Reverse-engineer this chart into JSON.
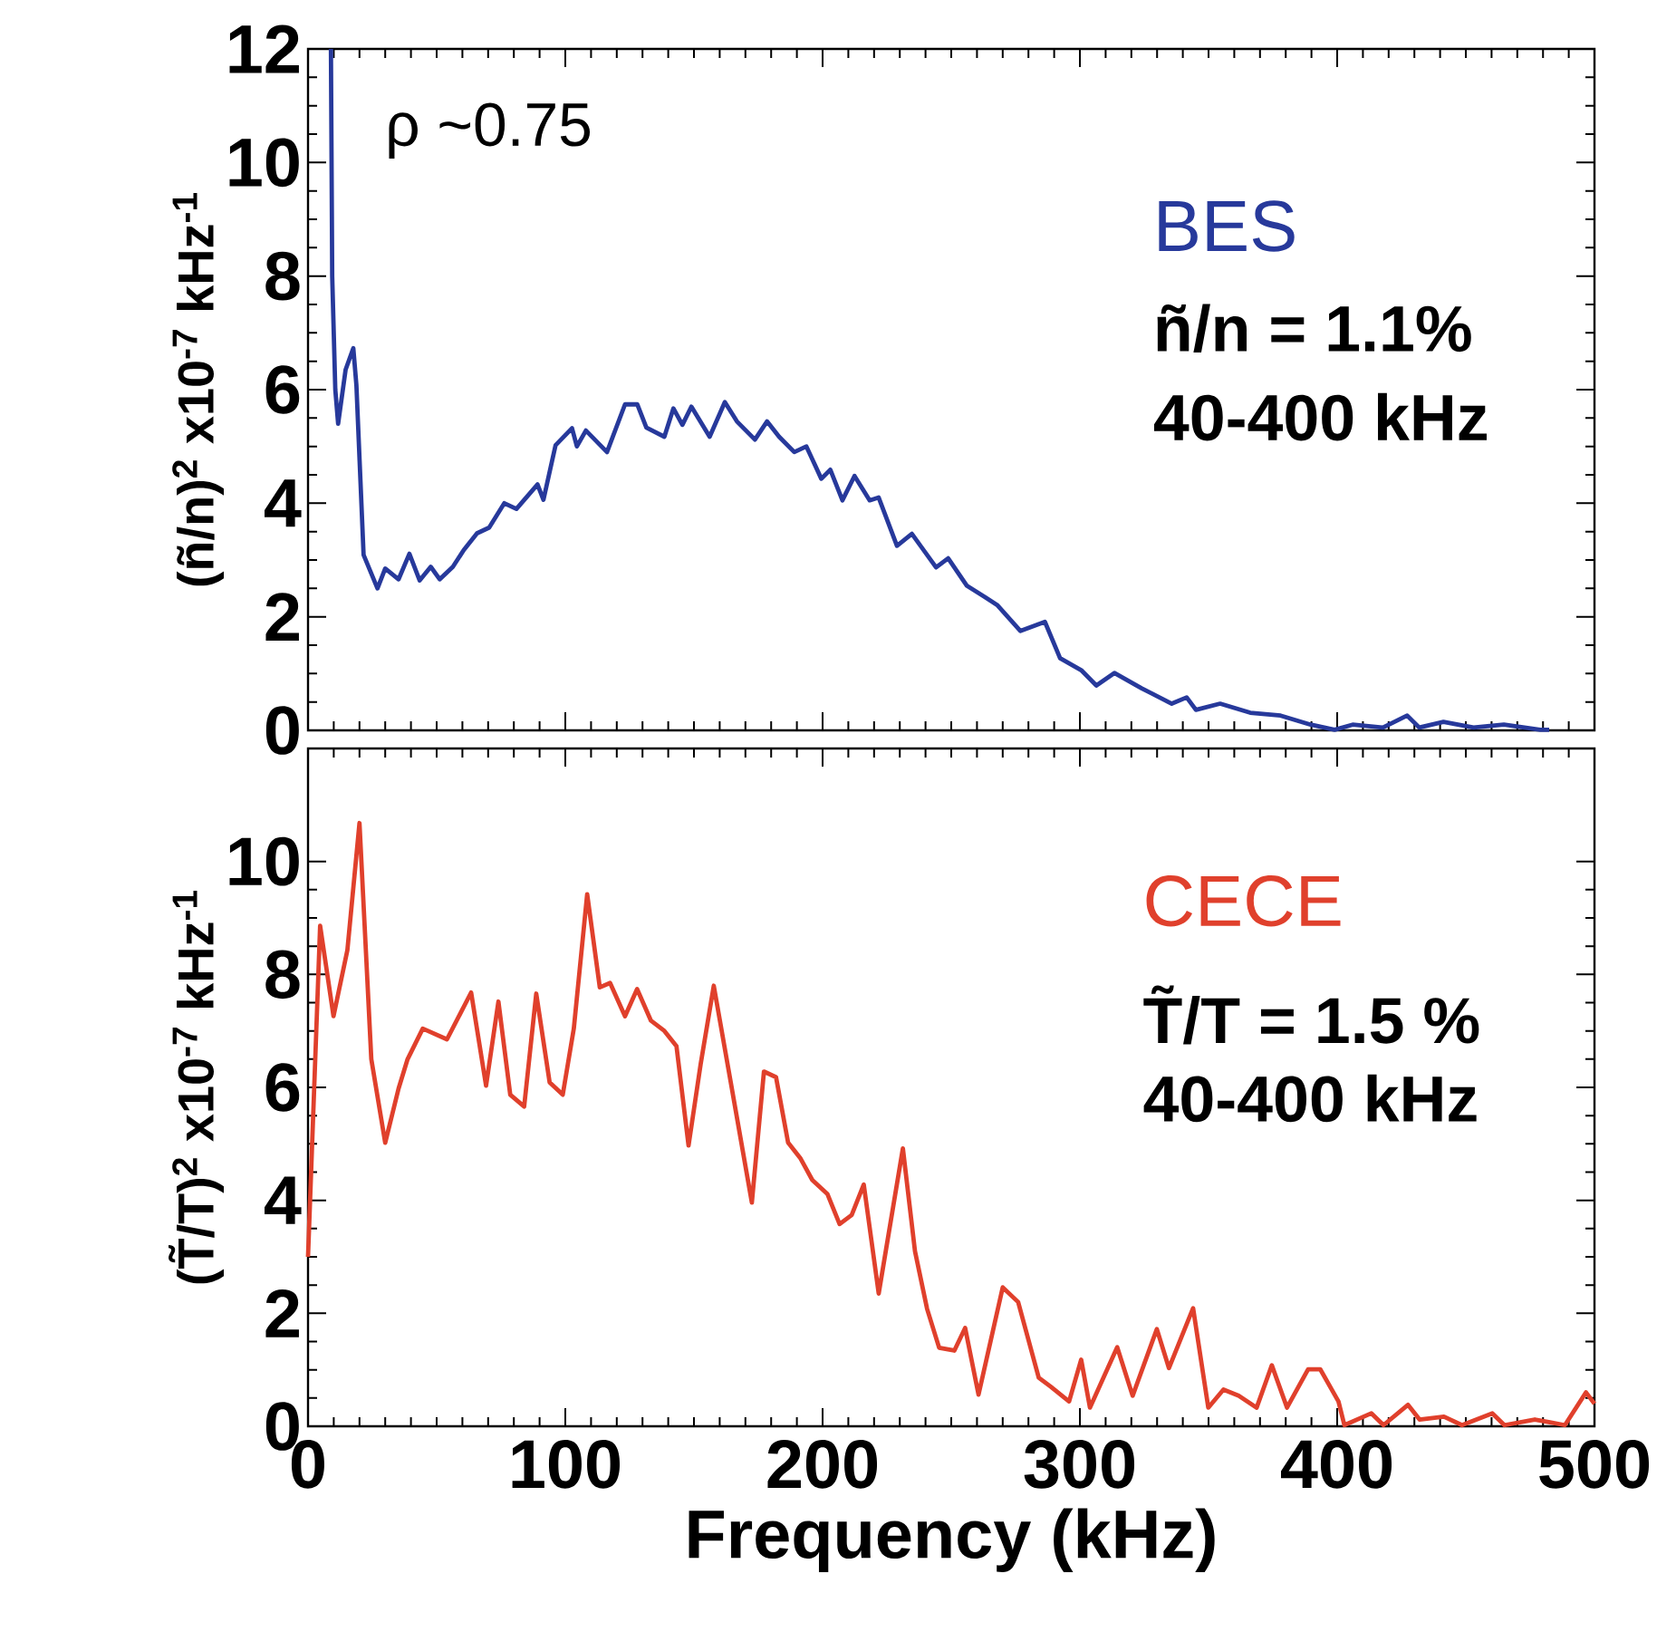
{
  "chart_data": [
    {
      "type": "line",
      "ylabel": "(ñ/n)$^{2}$ x10$^{-7}$ kHz$^{-1}$",
      "xlim": [
        0,
        500
      ],
      "xticks": [
        0,
        100,
        200,
        300,
        400,
        500
      ],
      "ylim": [
        0,
        12
      ],
      "yticks": [
        0,
        2,
        4,
        6,
        8,
        10,
        12
      ],
      "tick_labels": "y",
      "annotations": [
        "ρ ~0.75",
        "ñ/n = 1.1%",
        "40-400 kHz"
      ],
      "series": [
        {
          "name": "BES",
          "color": "#27399b",
          "x": [
            8.9,
            9.4,
            10.6,
            11.7,
            14.6,
            17.6,
            18.8,
            21.6,
            27,
            30,
            35.2,
            39.4,
            43.4,
            47.7,
            51.2,
            56.3,
            60.6,
            65.7,
            70.4,
            76.3,
            81,
            89.2,
            91.5,
            96.2,
            102.6,
            104.5,
            108,
            116.2,
            123.2,
            128,
            131.5,
            138.5,
            142,
            145.5,
            149,
            156.1,
            162,
            166.7,
            173.7,
            178.4,
            183.1,
            189,
            193.7,
            199.5,
            203,
            207.7,
            212.4,
            218.3,
            221.8,
            228.9,
            234.7,
            244.1,
            248.8,
            256,
            263,
            268,
            276.9,
            286.4,
            292.3,
            300.5,
            306.4,
            313.4,
            324,
            335.7,
            341.5,
            345.1,
            354.5,
            366.2,
            378,
            389.7,
            399,
            406,
            417.8,
            427.2,
            431.9,
            441.3,
            453,
            464.8,
            478.9,
            482.4
          ],
          "values": [
            12,
            8.0,
            6.0,
            5.4,
            6.35,
            6.73,
            6.08,
            3.09,
            2.5,
            2.85,
            2.66,
            3.11,
            2.64,
            2.88,
            2.66,
            2.88,
            3.18,
            3.47,
            3.57,
            4.0,
            3.9,
            4.33,
            4.06,
            5.02,
            5.32,
            5.0,
            5.28,
            4.9,
            5.74,
            5.74,
            5.33,
            5.17,
            5.67,
            5.38,
            5.7,
            5.17,
            5.78,
            5.44,
            5.12,
            5.44,
            5.17,
            4.9,
            5.0,
            4.43,
            4.59,
            4.05,
            4.48,
            4.05,
            4.1,
            3.25,
            3.46,
            2.87,
            3.03,
            2.55,
            2.35,
            2.2,
            1.75,
            1.91,
            1.27,
            1.06,
            0.79,
            1.01,
            0.74,
            0.47,
            0.58,
            0.36,
            0.47,
            0.31,
            0.26,
            0.1,
            0.01,
            0.1,
            0.05,
            0.26,
            0.05,
            0.15,
            0.05,
            0.1,
            0.01,
            0.01
          ]
        }
      ]
    },
    {
      "type": "line",
      "xlabel": "Frequency (kHz)",
      "ylabel": "(T̃/T)$^{2}$ x10$^{-7}$ kHz$^{-1}$",
      "xlim": [
        0,
        500
      ],
      "xticks": [
        0,
        100,
        200,
        300,
        400,
        500
      ],
      "ylim": [
        0,
        12
      ],
      "yticks": [
        0,
        2,
        4,
        6,
        8,
        10
      ],
      "annotations": [
        "T̃/T = 1.5 %",
        "40-400 kHz"
      ],
      "series": [
        {
          "name": "CECE",
          "color": "#e0402c",
          "x": [
            0,
            4.7,
            9.9,
            15.3,
            20,
            24.6,
            30,
            35.2,
            38.7,
            44.6,
            54,
            63.4,
            69.2,
            74,
            78.6,
            84,
            88.7,
            93.9,
            99,
            103.3,
            108.5,
            113.4,
            117.4,
            123.2,
            127.9,
            133.3,
            138.5,
            143.2,
            147.9,
            152.6,
            157.7,
            164.3,
            172.5,
            177.2,
            181.9,
            186.6,
            191.3,
            196,
            201.9,
            206.6,
            211.3,
            216,
            221.8,
            231.2,
            235.9,
            240.6,
            245.3,
            251.2,
            255.4,
            260.6,
            270,
            276,
            284,
            288.7,
            295.8,
            300.5,
            303.9,
            314.5,
            320.5,
            329.9,
            334.6,
            344,
            349.9,
            355.8,
            361.7,
            368.7,
            374.6,
            380.5,
            388.7,
            393.4,
            400.5,
            402.8,
            413.3,
            418,
            427.5,
            432,
            441.5,
            448.5,
            460.3,
            465,
            476.8,
            482.7,
            488.5,
            496.7,
            500
          ],
          "values": [
            3.0,
            8.86,
            7.26,
            8.43,
            10.68,
            6.5,
            5.02,
            5.98,
            6.5,
            7.04,
            6.85,
            7.68,
            6.03,
            7.52,
            5.87,
            5.66,
            7.66,
            6.09,
            5.87,
            7.04,
            9.42,
            7.77,
            7.85,
            7.26,
            7.74,
            7.18,
            7.0,
            6.73,
            4.97,
            6.41,
            7.8,
            6.09,
            3.96,
            6.28,
            6.18,
            5.02,
            4.75,
            4.36,
            4.11,
            3.58,
            3.74,
            4.28,
            2.35,
            4.92,
            3.1,
            2.08,
            1.39,
            1.34,
            1.74,
            0.56,
            2.46,
            2.2,
            0.86,
            0.7,
            0.44,
            1.18,
            0.33,
            1.4,
            0.54,
            1.72,
            1.03,
            2.09,
            0.33,
            0.65,
            0.54,
            0.33,
            1.08,
            0.33,
            1.01,
            1.01,
            0.44,
            0.02,
            0.23,
            0.02,
            0.38,
            0.12,
            0.17,
            0.02,
            0.23,
            0.02,
            0.12,
            0.07,
            0.02,
            0.6,
            0.4
          ]
        }
      ]
    }
  ]
}
